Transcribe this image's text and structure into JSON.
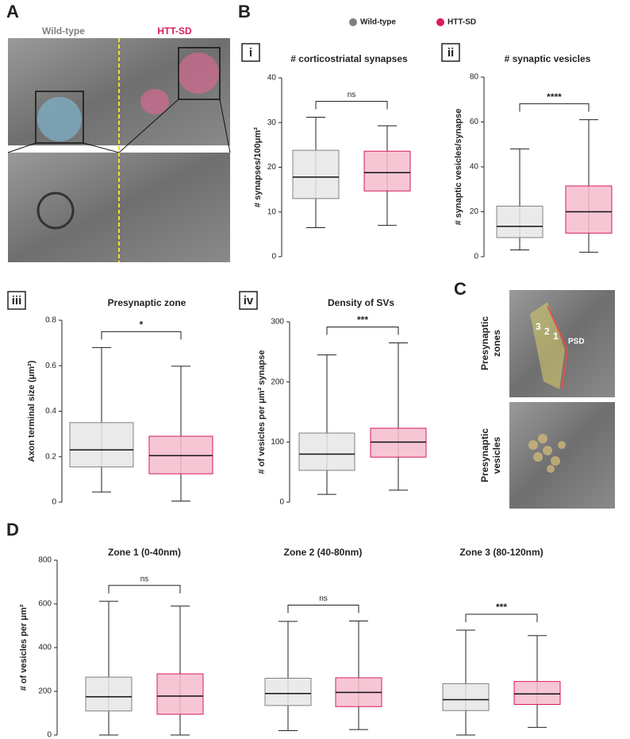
{
  "panel_letters": [
    "A",
    "B",
    "C",
    "D"
  ],
  "legend": [
    {
      "name": "Wild-type",
      "color": "#808080",
      "fill": "#e6e6e6"
    },
    {
      "name": "HTT-SD",
      "color": "#d81b60",
      "fill": "#f4bccc"
    }
  ],
  "images": {
    "a_left": "Wild-type",
    "a_right": "HTT-SD",
    "c_top": [
      "Presynaptic",
      "zones"
    ],
    "c_bottom": [
      "Presynaptic",
      "vesicles"
    ],
    "zone_numbers": [
      "3",
      "2",
      "1"
    ],
    "psd": "PSD"
  },
  "chart_data": [
    {
      "type": "box",
      "panel": "i",
      "title": "# corticostriatal synapses",
      "y_label": "# synapses/100μm²",
      "ylim": [
        0,
        40
      ],
      "yticks": [
        0,
        10,
        20,
        30,
        40
      ],
      "boxes": [
        [
          6.5,
          13,
          17.8,
          23.8,
          31.2
        ],
        [
          7,
          14.7,
          18.8,
          23.6,
          29.3
        ]
      ],
      "significance": "ns"
    },
    {
      "type": "box",
      "panel": "ii",
      "title": "# synaptic vesicles",
      "y_label": "# synaptic vesicles/synapse",
      "ylim": [
        0,
        80
      ],
      "yticks": [
        0,
        20,
        40,
        60,
        80
      ],
      "boxes": [
        [
          3,
          8.5,
          13.5,
          22.5,
          48
        ],
        [
          2,
          10.5,
          20,
          31.5,
          61
        ]
      ],
      "significance": "****"
    },
    {
      "type": "box",
      "panel": "iii",
      "title": "Presynaptic zone",
      "y_label": "Axon terminal size (μm²)",
      "ylim": [
        0,
        0.8
      ],
      "yticks": [
        0,
        0.2,
        0.4,
        0.6,
        0.8
      ],
      "boxes": [
        [
          0.045,
          0.155,
          0.23,
          0.35,
          0.68
        ],
        [
          0.005,
          0.125,
          0.205,
          0.29,
          0.598
        ]
      ],
      "significance": "*"
    },
    {
      "type": "box",
      "panel": "iv",
      "title": "Density of SVs",
      "y_label": "# of vesicles per μm² synapse",
      "ylim": [
        0,
        300
      ],
      "yticks": [
        0,
        100,
        200,
        300
      ],
      "boxes": [
        [
          13,
          53,
          80,
          115,
          245
        ],
        [
          20,
          75,
          100,
          123,
          265
        ]
      ],
      "significance": "***"
    },
    {
      "type": "grouped-box",
      "y_label": "# of vesicles per μm²",
      "ylim": [
        0,
        800
      ],
      "yticks": [
        0,
        200,
        400,
        600,
        800
      ],
      "groups": [
        {
          "title": "Zone 1 (0-40nm)",
          "boxes": [
            [
              0,
              110,
              175,
              265,
              612
            ],
            [
              0,
              95,
              178,
              280,
              590
            ]
          ],
          "significance": "ns"
        },
        {
          "title": "Zone 2 (40-80nm)",
          "boxes": [
            [
              20,
              135,
              190,
              260,
              520
            ],
            [
              25,
              130,
              195,
              262,
              522
            ]
          ],
          "significance": "ns"
        },
        {
          "title": "Zone 3 (80-120nm)",
          "boxes": [
            [
              0,
              112,
              162,
              235,
              480
            ],
            [
              35,
              140,
              188,
              245,
              455
            ]
          ],
          "significance": "***"
        }
      ]
    }
  ]
}
